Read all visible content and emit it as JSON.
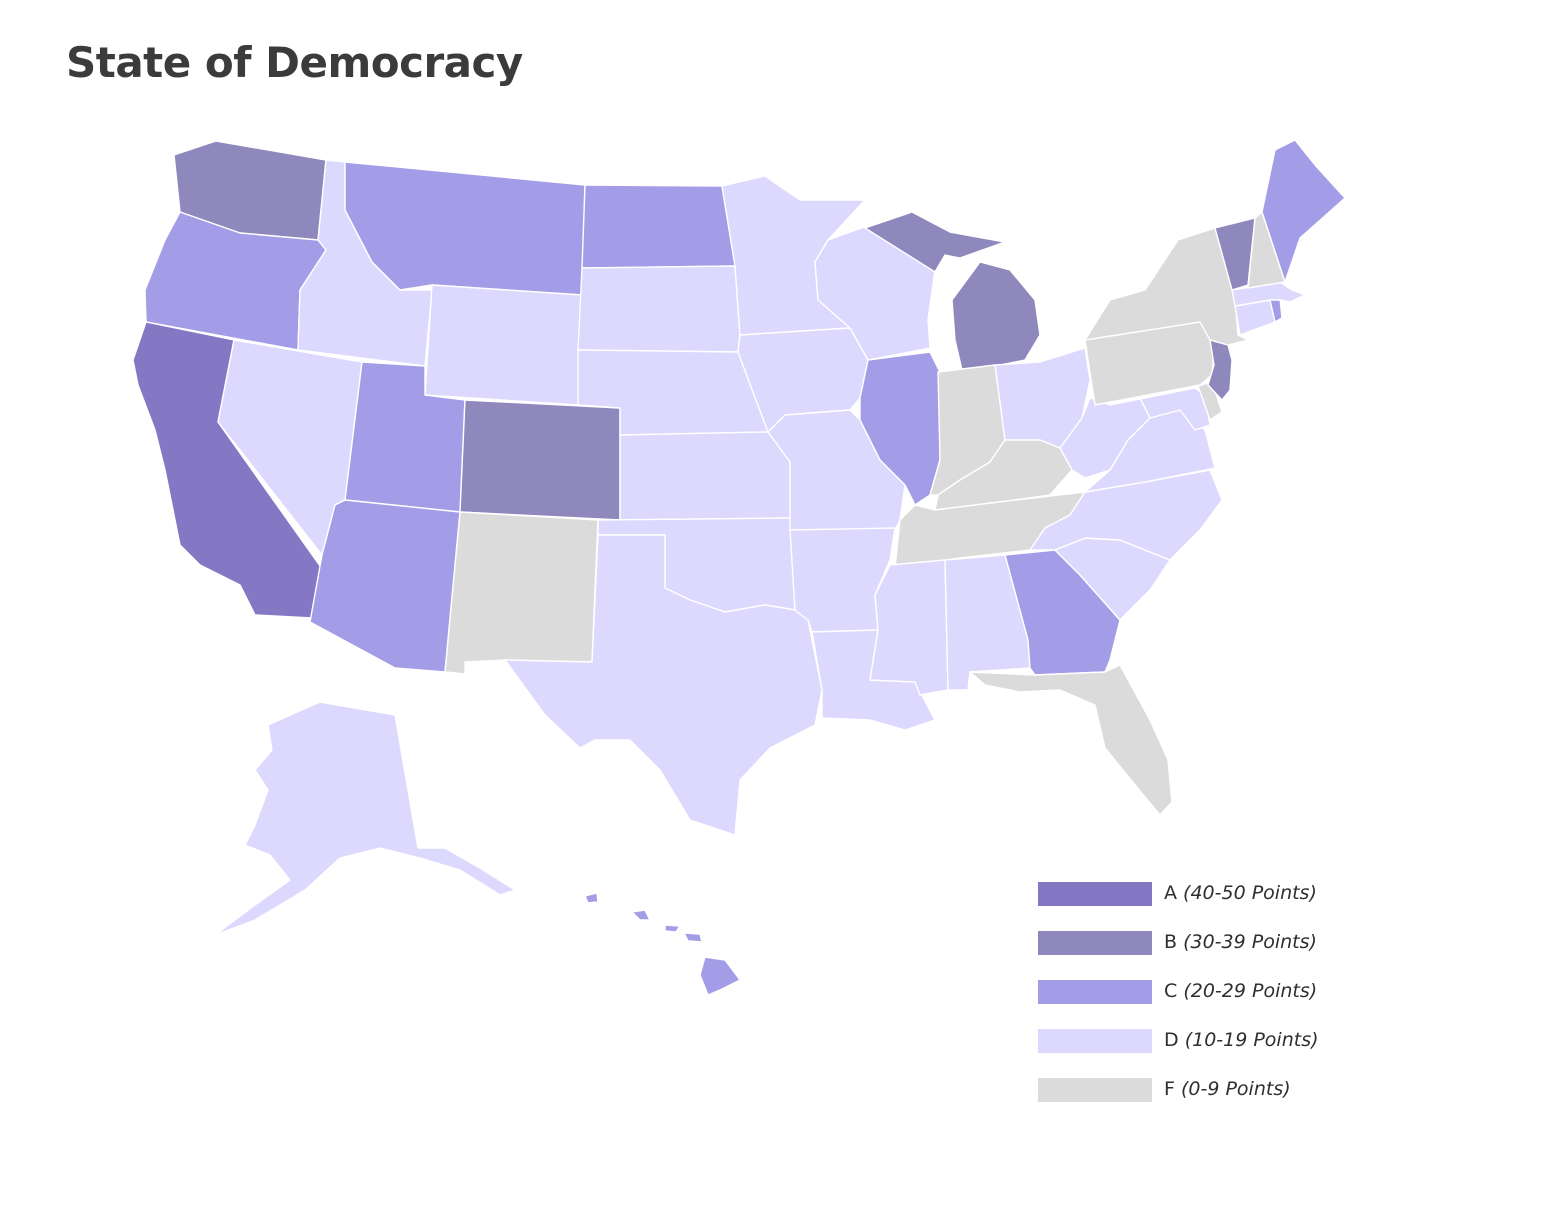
{
  "title": "State of Democracy",
  "grade_colors": {
    "A": "#8478c4",
    "B": "#8e88bd",
    "C": "#a39ce7",
    "D": "#dcd8fe",
    "F": "#dbdbdb"
  },
  "legend": [
    {
      "grade": "A",
      "range": "(40-50 Points)"
    },
    {
      "grade": "B",
      "range": "(30-39 Points)"
    },
    {
      "grade": "C",
      "range": "(20-29 Points)"
    },
    {
      "grade": "D",
      "range": "(10-19 Points)"
    },
    {
      "grade": "F",
      "range": "(0-9 Points)"
    }
  ],
  "states": {
    "WA": "B",
    "OR": "C",
    "CA": "A",
    "NV": "D",
    "ID": "D",
    "MT": "C",
    "WY": "D",
    "UT": "C",
    "AZ": "C",
    "CO": "B",
    "NM": "F",
    "ND": "C",
    "SD": "D",
    "NE": "D",
    "KS": "D",
    "OK": "D",
    "TX": "D",
    "MN": "D",
    "IA": "D",
    "MO": "D",
    "AR": "D",
    "LA": "D",
    "WI": "D",
    "IL": "C",
    "MI": "B",
    "IN": "F",
    "OH": "D",
    "KY": "F",
    "TN": "F",
    "MS": "D",
    "AL": "D",
    "GA": "C",
    "FL": "F",
    "SC": "D",
    "NC": "D",
    "VA": "D",
    "WV": "D",
    "MD": "D",
    "DE": "F",
    "PA": "F",
    "NJ": "B",
    "NY": "F",
    "CT": "D",
    "RI": "C",
    "MA": "D",
    "VT": "B",
    "NH": "F",
    "ME": "C",
    "AK": "D",
    "HI": "C"
  }
}
